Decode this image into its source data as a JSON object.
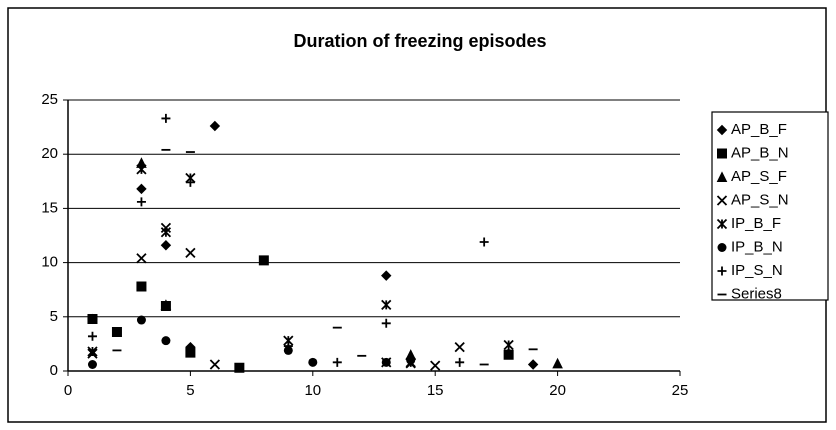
{
  "chart_data": {
    "type": "scatter",
    "title": "Duration of freezing episodes",
    "xlim": [
      0,
      25
    ],
    "xticks": [
      0,
      5,
      10,
      15,
      20,
      25
    ],
    "ylim": [
      0,
      25
    ],
    "yticks": [
      0,
      5,
      10,
      15,
      20,
      25
    ],
    "grid": true,
    "legend": "right",
    "series": [
      {
        "name": "AP_B_F",
        "marker": "diamond",
        "color": "#000000",
        "x": [
          1,
          3,
          4,
          5,
          6,
          13,
          19
        ],
        "y": [
          4.8,
          16.8,
          11.6,
          2.2,
          22.6,
          8.8,
          0.6
        ]
      },
      {
        "name": "AP_B_N",
        "marker": "square",
        "color": "#000000",
        "x": [
          1,
          2,
          3,
          4,
          5,
          7,
          8,
          18
        ],
        "y": [
          4.8,
          3.6,
          7.8,
          6.0,
          1.7,
          0.3,
          10.2,
          1.5
        ]
      },
      {
        "name": "AP_S_F",
        "marker": "triangle",
        "color": "#000000",
        "x": [
          3,
          4,
          14,
          20
        ],
        "y": [
          19.2,
          6.1,
          1.5,
          0.7
        ]
      },
      {
        "name": "AP_S_N",
        "marker": "x",
        "color": "#000000",
        "x": [
          1,
          3,
          4,
          5,
          6,
          13,
          14,
          15,
          16
        ],
        "y": [
          1.6,
          10.4,
          13.2,
          10.9,
          0.6,
          0.8,
          0.7,
          0.5,
          2.2
        ]
      },
      {
        "name": "IP_B_F",
        "marker": "asterisk",
        "color": "#000000",
        "x": [
          1,
          3,
          4,
          5,
          9,
          13,
          14,
          18
        ],
        "y": [
          1.8,
          18.6,
          12.8,
          17.8,
          2.8,
          6.1,
          0.8,
          2.4
        ]
      },
      {
        "name": "IP_B_N",
        "marker": "circle",
        "color": "#000000",
        "x": [
          1,
          3,
          4,
          5,
          9,
          10,
          13,
          14,
          18
        ],
        "y": [
          0.6,
          4.7,
          2.8,
          2.0,
          1.9,
          0.8,
          0.8,
          1.0,
          1.6
        ]
      },
      {
        "name": "IP_S_N",
        "marker": "plus",
        "color": "#000000",
        "x": [
          1,
          3,
          4,
          5,
          9,
          11,
          13,
          16,
          17
        ],
        "y": [
          3.2,
          15.6,
          23.3,
          17.4,
          2.3,
          0.8,
          4.4,
          0.8,
          11.9
        ]
      },
      {
        "name": "Series8",
        "marker": "dash",
        "color": "#000000",
        "x": [
          2,
          4,
          5,
          11,
          12,
          17,
          19
        ],
        "y": [
          1.9,
          20.4,
          20.2,
          4.0,
          1.4,
          0.6,
          2.0
        ]
      }
    ]
  }
}
